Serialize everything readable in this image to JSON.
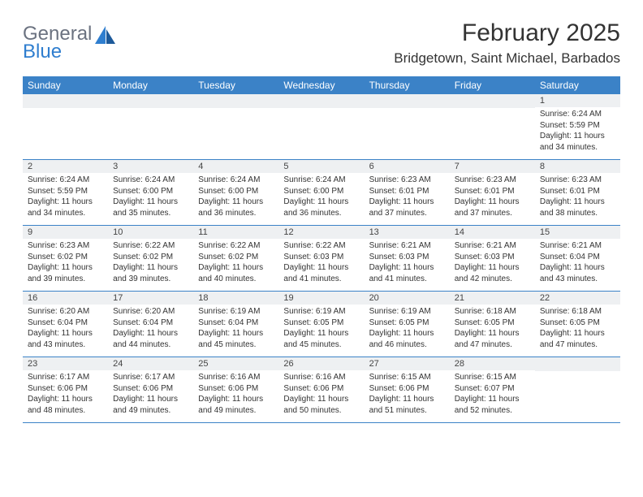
{
  "logo": {
    "general": "General",
    "blue": "Blue"
  },
  "title": {
    "month": "February 2025",
    "location": "Bridgetown, Saint Michael, Barbados"
  },
  "colors": {
    "header_bg": "#3b82c7",
    "header_text": "#ffffff",
    "daynum_bg": "#eef0f2",
    "row_border": "#3b82c7",
    "text": "#333333",
    "logo_gray": "#6b7280",
    "logo_blue": "#2f7ecf"
  },
  "day_headers": [
    "Sunday",
    "Monday",
    "Tuesday",
    "Wednesday",
    "Thursday",
    "Friday",
    "Saturday"
  ],
  "weeks": [
    [
      {
        "n": "",
        "sunrise": "",
        "sunset": "",
        "daylight": ""
      },
      {
        "n": "",
        "sunrise": "",
        "sunset": "",
        "daylight": ""
      },
      {
        "n": "",
        "sunrise": "",
        "sunset": "",
        "daylight": ""
      },
      {
        "n": "",
        "sunrise": "",
        "sunset": "",
        "daylight": ""
      },
      {
        "n": "",
        "sunrise": "",
        "sunset": "",
        "daylight": ""
      },
      {
        "n": "",
        "sunrise": "",
        "sunset": "",
        "daylight": ""
      },
      {
        "n": "1",
        "sunrise": "Sunrise: 6:24 AM",
        "sunset": "Sunset: 5:59 PM",
        "daylight": "Daylight: 11 hours and 34 minutes."
      }
    ],
    [
      {
        "n": "2",
        "sunrise": "Sunrise: 6:24 AM",
        "sunset": "Sunset: 5:59 PM",
        "daylight": "Daylight: 11 hours and 34 minutes."
      },
      {
        "n": "3",
        "sunrise": "Sunrise: 6:24 AM",
        "sunset": "Sunset: 6:00 PM",
        "daylight": "Daylight: 11 hours and 35 minutes."
      },
      {
        "n": "4",
        "sunrise": "Sunrise: 6:24 AM",
        "sunset": "Sunset: 6:00 PM",
        "daylight": "Daylight: 11 hours and 36 minutes."
      },
      {
        "n": "5",
        "sunrise": "Sunrise: 6:24 AM",
        "sunset": "Sunset: 6:00 PM",
        "daylight": "Daylight: 11 hours and 36 minutes."
      },
      {
        "n": "6",
        "sunrise": "Sunrise: 6:23 AM",
        "sunset": "Sunset: 6:01 PM",
        "daylight": "Daylight: 11 hours and 37 minutes."
      },
      {
        "n": "7",
        "sunrise": "Sunrise: 6:23 AM",
        "sunset": "Sunset: 6:01 PM",
        "daylight": "Daylight: 11 hours and 37 minutes."
      },
      {
        "n": "8",
        "sunrise": "Sunrise: 6:23 AM",
        "sunset": "Sunset: 6:01 PM",
        "daylight": "Daylight: 11 hours and 38 minutes."
      }
    ],
    [
      {
        "n": "9",
        "sunrise": "Sunrise: 6:23 AM",
        "sunset": "Sunset: 6:02 PM",
        "daylight": "Daylight: 11 hours and 39 minutes."
      },
      {
        "n": "10",
        "sunrise": "Sunrise: 6:22 AM",
        "sunset": "Sunset: 6:02 PM",
        "daylight": "Daylight: 11 hours and 39 minutes."
      },
      {
        "n": "11",
        "sunrise": "Sunrise: 6:22 AM",
        "sunset": "Sunset: 6:02 PM",
        "daylight": "Daylight: 11 hours and 40 minutes."
      },
      {
        "n": "12",
        "sunrise": "Sunrise: 6:22 AM",
        "sunset": "Sunset: 6:03 PM",
        "daylight": "Daylight: 11 hours and 41 minutes."
      },
      {
        "n": "13",
        "sunrise": "Sunrise: 6:21 AM",
        "sunset": "Sunset: 6:03 PM",
        "daylight": "Daylight: 11 hours and 41 minutes."
      },
      {
        "n": "14",
        "sunrise": "Sunrise: 6:21 AM",
        "sunset": "Sunset: 6:03 PM",
        "daylight": "Daylight: 11 hours and 42 minutes."
      },
      {
        "n": "15",
        "sunrise": "Sunrise: 6:21 AM",
        "sunset": "Sunset: 6:04 PM",
        "daylight": "Daylight: 11 hours and 43 minutes."
      }
    ],
    [
      {
        "n": "16",
        "sunrise": "Sunrise: 6:20 AM",
        "sunset": "Sunset: 6:04 PM",
        "daylight": "Daylight: 11 hours and 43 minutes."
      },
      {
        "n": "17",
        "sunrise": "Sunrise: 6:20 AM",
        "sunset": "Sunset: 6:04 PM",
        "daylight": "Daylight: 11 hours and 44 minutes."
      },
      {
        "n": "18",
        "sunrise": "Sunrise: 6:19 AM",
        "sunset": "Sunset: 6:04 PM",
        "daylight": "Daylight: 11 hours and 45 minutes."
      },
      {
        "n": "19",
        "sunrise": "Sunrise: 6:19 AM",
        "sunset": "Sunset: 6:05 PM",
        "daylight": "Daylight: 11 hours and 45 minutes."
      },
      {
        "n": "20",
        "sunrise": "Sunrise: 6:19 AM",
        "sunset": "Sunset: 6:05 PM",
        "daylight": "Daylight: 11 hours and 46 minutes."
      },
      {
        "n": "21",
        "sunrise": "Sunrise: 6:18 AM",
        "sunset": "Sunset: 6:05 PM",
        "daylight": "Daylight: 11 hours and 47 minutes."
      },
      {
        "n": "22",
        "sunrise": "Sunrise: 6:18 AM",
        "sunset": "Sunset: 6:05 PM",
        "daylight": "Daylight: 11 hours and 47 minutes."
      }
    ],
    [
      {
        "n": "23",
        "sunrise": "Sunrise: 6:17 AM",
        "sunset": "Sunset: 6:06 PM",
        "daylight": "Daylight: 11 hours and 48 minutes."
      },
      {
        "n": "24",
        "sunrise": "Sunrise: 6:17 AM",
        "sunset": "Sunset: 6:06 PM",
        "daylight": "Daylight: 11 hours and 49 minutes."
      },
      {
        "n": "25",
        "sunrise": "Sunrise: 6:16 AM",
        "sunset": "Sunset: 6:06 PM",
        "daylight": "Daylight: 11 hours and 49 minutes."
      },
      {
        "n": "26",
        "sunrise": "Sunrise: 6:16 AM",
        "sunset": "Sunset: 6:06 PM",
        "daylight": "Daylight: 11 hours and 50 minutes."
      },
      {
        "n": "27",
        "sunrise": "Sunrise: 6:15 AM",
        "sunset": "Sunset: 6:06 PM",
        "daylight": "Daylight: 11 hours and 51 minutes."
      },
      {
        "n": "28",
        "sunrise": "Sunrise: 6:15 AM",
        "sunset": "Sunset: 6:07 PM",
        "daylight": "Daylight: 11 hours and 52 minutes."
      },
      {
        "n": "",
        "sunrise": "",
        "sunset": "",
        "daylight": ""
      }
    ]
  ]
}
